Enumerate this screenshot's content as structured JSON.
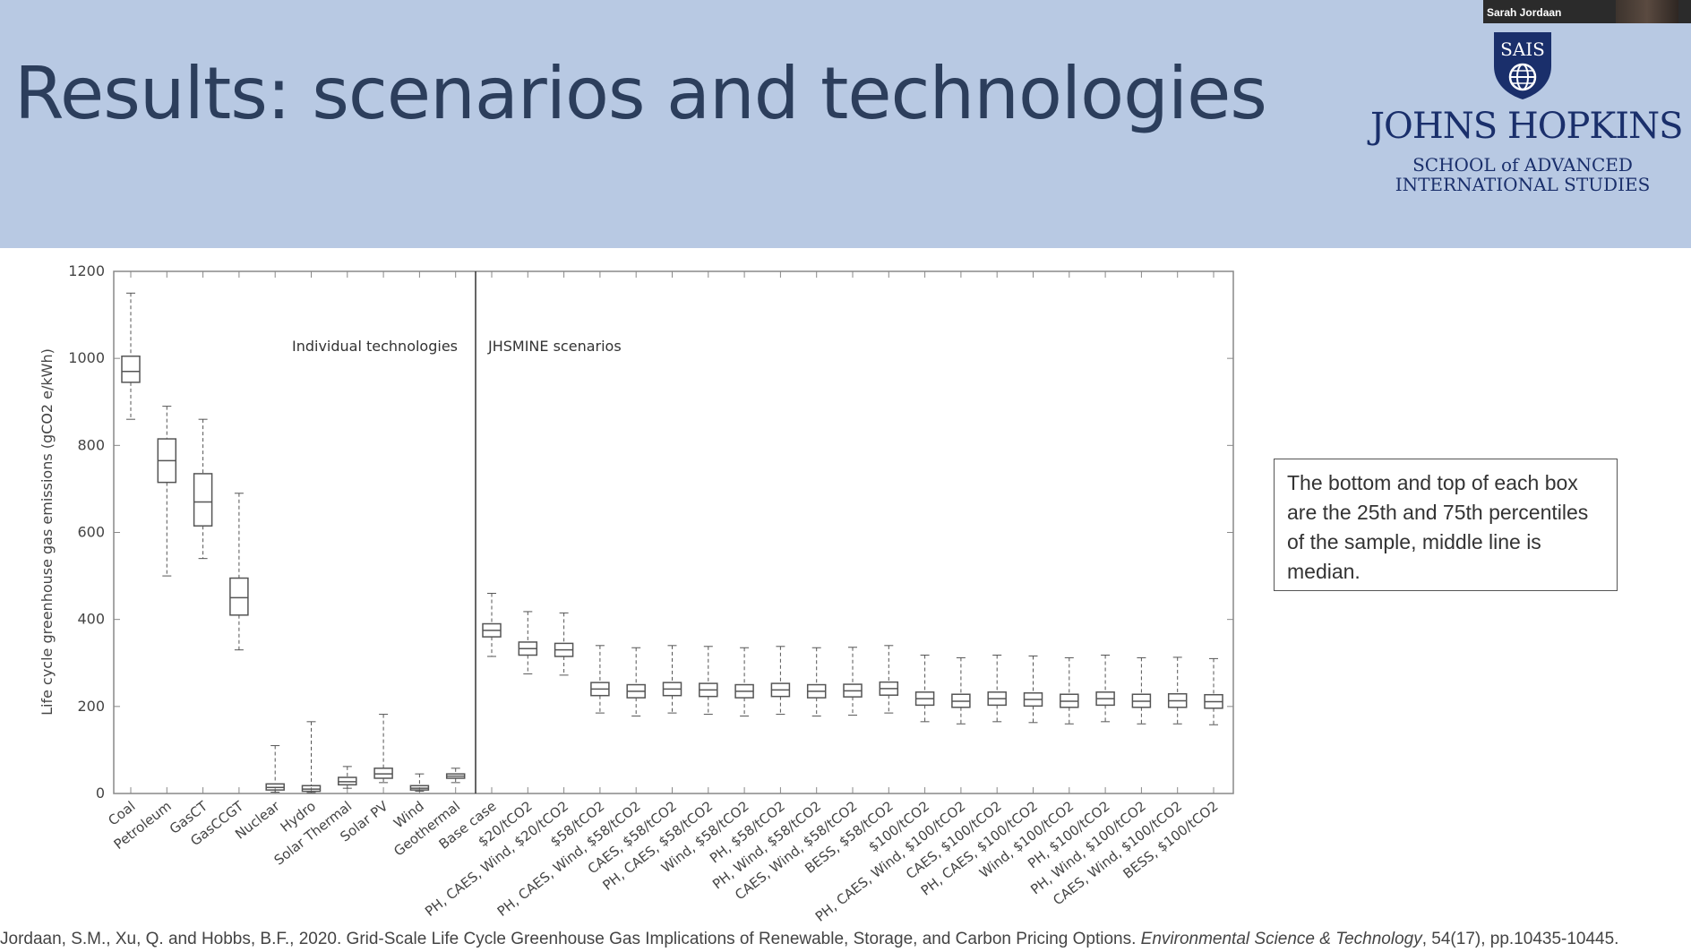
{
  "slide": {
    "title": "Results: scenarios and technologies",
    "webcam_name": "Sarah Jordaan"
  },
  "logo": {
    "seal_text": "SAIS",
    "line1": "JOHNS HOPKINS",
    "line2": "SCHOOL of ADVANCED",
    "line3": "INTERNATIONAL STUDIES"
  },
  "note": {
    "text": "The bottom and top of each box are the 25th and 75th percentiles of the sample, middle line is median."
  },
  "citation": {
    "plain": "Jordaan, S.M., Xu, Q. and Hobbs, B.F., 2020. Grid-Scale Life Cycle Greenhouse Gas Implications of Renewable, Storage, and Carbon Pricing Options. ",
    "journal": "Environmental Science & Technology",
    "volume": ", 54",
    "issue_pages": "(17), pp.10435-10445."
  },
  "chart_data": {
    "type": "box",
    "ylabel": "Life cycle greenhouse gas emissions (gCO2 e/kWh)",
    "ylim": [
      0,
      1200
    ],
    "yticks": [
      0,
      200,
      400,
      600,
      800,
      1000,
      1200
    ],
    "panel_labels": [
      "Individual technologies",
      "JHSMINE scenarios"
    ],
    "categories": [
      "Coal",
      "Petroleum",
      "GasCT",
      "GasCCGT",
      "Nuclear",
      "Hydro",
      "Solar Thermal",
      "Solar PV",
      "Wind",
      "Geothermal",
      "Base case",
      "$20/tCO2",
      "PH, CAES, Wind, $20/tCO2",
      "$58/tCO2",
      "PH, CAES, Wind, $58/tCO2",
      "CAES, $58/tCO2",
      "PH, CAES, $58/tCO2",
      "Wind, $58/tCO2",
      "PH, $58/tCO2",
      "PH, Wind, $58/tCO2",
      "CAES, Wind, $58/tCO2",
      "BESS, $58/tCO2",
      "$100/tCO2",
      "PH, CAES, Wind, $100/tCO2",
      "CAES, $100/tCO2",
      "PH, CAES, $100/tCO2",
      "Wind, $100/tCO2",
      "PH, $100/tCO2",
      "PH, Wind, $100/tCO2",
      "CAES, Wind, $100/tCO2",
      "BESS, $100/tCO2"
    ],
    "boxes": [
      {
        "min": 860,
        "q1": 945,
        "median": 970,
        "q3": 1005,
        "max": 1150
      },
      {
        "min": 500,
        "q1": 715,
        "median": 765,
        "q3": 815,
        "max": 890
      },
      {
        "min": 540,
        "q1": 615,
        "median": 670,
        "q3": 735,
        "max": 860
      },
      {
        "min": 330,
        "q1": 410,
        "median": 450,
        "q3": 495,
        "max": 690
      },
      {
        "min": 3,
        "q1": 8,
        "median": 14,
        "q3": 22,
        "max": 110
      },
      {
        "min": 2,
        "q1": 5,
        "median": 10,
        "q3": 18,
        "max": 165
      },
      {
        "min": 12,
        "q1": 20,
        "median": 27,
        "q3": 37,
        "max": 62
      },
      {
        "min": 25,
        "q1": 35,
        "median": 45,
        "q3": 58,
        "max": 182
      },
      {
        "min": 5,
        "q1": 8,
        "median": 12,
        "q3": 18,
        "max": 45
      },
      {
        "min": 25,
        "q1": 35,
        "median": 40,
        "q3": 45,
        "max": 58
      },
      {
        "min": 315,
        "q1": 360,
        "median": 375,
        "q3": 390,
        "max": 460
      },
      {
        "min": 275,
        "q1": 318,
        "median": 333,
        "q3": 348,
        "max": 418
      },
      {
        "min": 272,
        "q1": 315,
        "median": 330,
        "q3": 345,
        "max": 415
      },
      {
        "min": 185,
        "q1": 225,
        "median": 240,
        "q3": 255,
        "max": 340
      },
      {
        "min": 178,
        "q1": 220,
        "median": 235,
        "q3": 250,
        "max": 335
      },
      {
        "min": 185,
        "q1": 225,
        "median": 240,
        "q3": 255,
        "max": 340
      },
      {
        "min": 182,
        "q1": 223,
        "median": 238,
        "q3": 253,
        "max": 338
      },
      {
        "min": 178,
        "q1": 220,
        "median": 235,
        "q3": 250,
        "max": 335
      },
      {
        "min": 182,
        "q1": 223,
        "median": 238,
        "q3": 253,
        "max": 338
      },
      {
        "min": 178,
        "q1": 220,
        "median": 235,
        "q3": 250,
        "max": 335
      },
      {
        "min": 180,
        "q1": 222,
        "median": 236,
        "q3": 251,
        "max": 336
      },
      {
        "min": 185,
        "q1": 226,
        "median": 241,
        "q3": 256,
        "max": 340
      },
      {
        "min": 165,
        "q1": 203,
        "median": 218,
        "q3": 233,
        "max": 318
      },
      {
        "min": 160,
        "q1": 198,
        "median": 212,
        "q3": 228,
        "max": 312
      },
      {
        "min": 165,
        "q1": 203,
        "median": 218,
        "q3": 233,
        "max": 318
      },
      {
        "min": 163,
        "q1": 201,
        "median": 216,
        "q3": 231,
        "max": 316
      },
      {
        "min": 160,
        "q1": 198,
        "median": 212,
        "q3": 228,
        "max": 312
      },
      {
        "min": 165,
        "q1": 203,
        "median": 218,
        "q3": 233,
        "max": 318
      },
      {
        "min": 160,
        "q1": 198,
        "median": 212,
        "q3": 228,
        "max": 312
      },
      {
        "min": 160,
        "q1": 198,
        "median": 213,
        "q3": 229,
        "max": 313
      },
      {
        "min": 158,
        "q1": 196,
        "median": 211,
        "q3": 227,
        "max": 310
      }
    ]
  }
}
